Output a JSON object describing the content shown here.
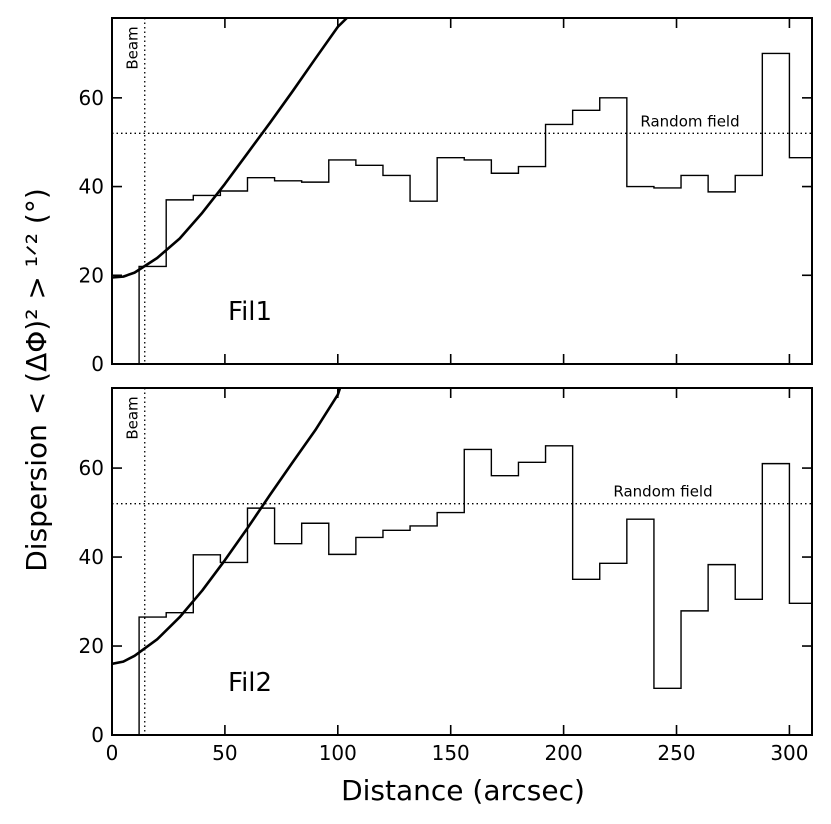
{
  "chart_data": [
    {
      "type": "line",
      "panel_label": "Fil1",
      "xlim": [
        0,
        310
      ],
      "ylim": [
        0,
        78
      ],
      "x_ticks": [
        0,
        50,
        100,
        150,
        200,
        250,
        300
      ],
      "y_ticks": [
        0,
        20,
        40,
        60
      ],
      "y_tick_labels": [
        "0",
        "20",
        "40",
        "60"
      ],
      "beam_x": 14.5,
      "beam_label": "Beam",
      "random_field_y": 52,
      "random_field_label": "Random field",
      "histogram": {
        "bin_edges": [
          12,
          24,
          36,
          48,
          60,
          72,
          84,
          96,
          108,
          120,
          132,
          144,
          156,
          168,
          180,
          192,
          204,
          216,
          228,
          240,
          252,
          264,
          276,
          288,
          300,
          312
        ],
        "values": [
          22,
          37,
          38,
          39,
          42,
          41.3,
          41,
          46,
          44.8,
          42.5,
          36.7,
          46.5,
          46,
          43,
          44.5,
          54,
          57.2,
          60,
          40,
          39.7,
          42.5,
          38.8,
          42.5,
          70,
          46.5
        ]
      },
      "model_curve": {
        "x": [
          0,
          5,
          10,
          20,
          30,
          40,
          50,
          60,
          70,
          80,
          90,
          100,
          104
        ],
        "y": [
          19.5,
          19.7,
          20.6,
          23.9,
          28.3,
          34.1,
          40.6,
          47.5,
          54.4,
          61.5,
          68.8,
          76,
          78
        ]
      }
    },
    {
      "type": "line",
      "panel_label": "Fil2",
      "xlim": [
        0,
        310
      ],
      "ylim": [
        0,
        78
      ],
      "x_ticks": [
        0,
        50,
        100,
        150,
        200,
        250,
        300
      ],
      "x_tick_labels": [
        "0",
        "50",
        "100",
        "150",
        "200",
        "250",
        "300"
      ],
      "y_ticks": [
        0,
        20,
        40,
        60
      ],
      "y_tick_labels": [
        "0",
        "20",
        "40",
        "60"
      ],
      "beam_x": 14.5,
      "beam_label": "Beam",
      "random_field_y": 52,
      "random_field_label": "Random field",
      "histogram": {
        "bin_edges": [
          12,
          24,
          36,
          48,
          60,
          72,
          84,
          96,
          108,
          120,
          132,
          144,
          156,
          168,
          180,
          192,
          204,
          216,
          228,
          240,
          252,
          264,
          276,
          288,
          300,
          312
        ],
        "values": [
          26.5,
          27.5,
          40.5,
          38.8,
          51,
          43,
          47.6,
          40.6,
          44.4,
          46,
          47,
          50,
          64.2,
          58.3,
          61.3,
          65,
          35,
          38.6,
          48.5,
          10.5,
          27.9,
          38.3,
          30.5,
          61,
          29.6
        ]
      },
      "model_curve": {
        "x": [
          0,
          5,
          10,
          20,
          30,
          40,
          50,
          60,
          70,
          80,
          90,
          100,
          101
        ],
        "y": [
          16,
          16.5,
          17.8,
          21.5,
          26.5,
          32.5,
          39.3,
          46.5,
          54,
          61.3,
          68.5,
          76.5,
          78
        ]
      }
    }
  ],
  "xlabel": "Distance (arcsec)",
  "ylabel": "Dispersion  < (ΔΦ)² > ¹ᐟ²  (°)"
}
